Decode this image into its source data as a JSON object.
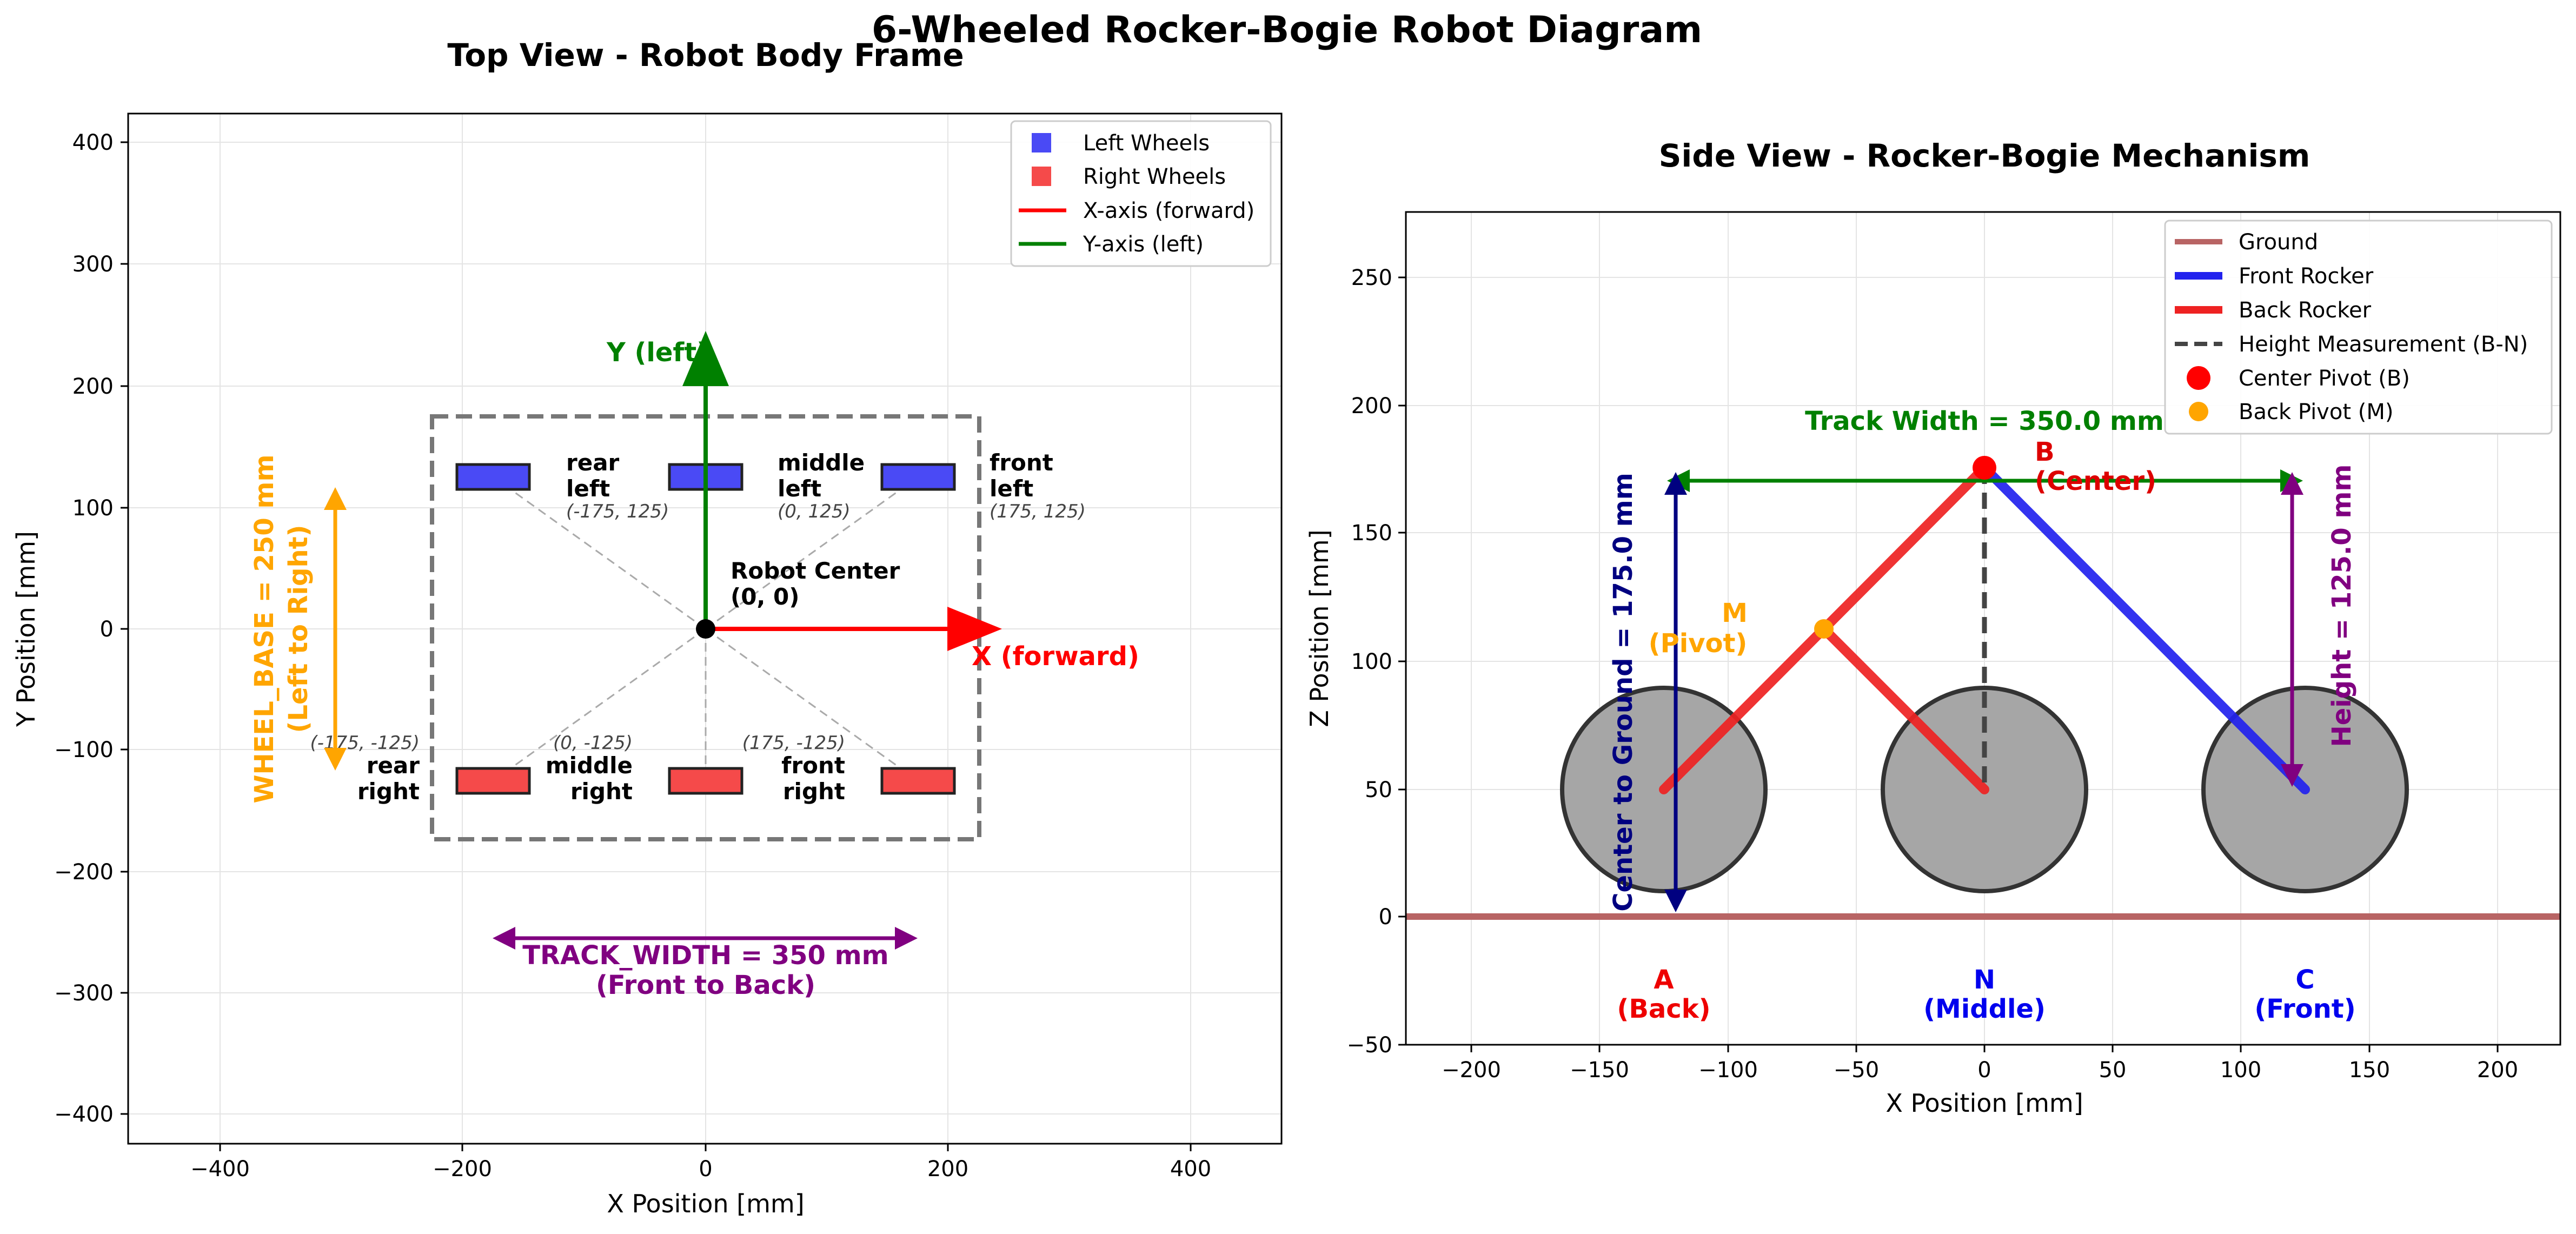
{
  "figure": {
    "title": "6-Wheeled Rocker-Bogie Robot Diagram"
  },
  "top_view": {
    "title": "Top View - Robot Body Frame",
    "xlabel": "X Position [mm]",
    "ylabel": "Y Position [mm]",
    "x_ticks": [
      "−400",
      "−200",
      "0",
      "200",
      "400"
    ],
    "y_ticks": [
      "400",
      "300",
      "200",
      "100",
      "0",
      "−100",
      "−200",
      "−300",
      "−400"
    ],
    "legend": [
      {
        "label": "Left Wheels",
        "color": "#4a4af5",
        "kind": "square"
      },
      {
        "label": "Right Wheels",
        "color": "#f54a4a",
        "kind": "square"
      },
      {
        "label": "X-axis (forward)",
        "color": "#ff0000",
        "kind": "line"
      },
      {
        "label": "Y-axis (left)",
        "color": "#008000",
        "kind": "line"
      }
    ],
    "y_axis_label": "Y (left)",
    "x_axis_label": "X (forward)",
    "center_label_1": "Robot Center",
    "center_label_2": "(0, 0)",
    "wheels": [
      {
        "line1": "rear",
        "line2": "left",
        "coord": "(-175, 125)",
        "x": -175,
        "y": 125,
        "side": "left"
      },
      {
        "line1": "middle",
        "line2": "left",
        "coord": "(0, 125)",
        "x": 0,
        "y": 125,
        "side": "left"
      },
      {
        "line1": "front",
        "line2": "left",
        "coord": "(175, 125)",
        "x": 175,
        "y": 125,
        "side": "left"
      },
      {
        "line1": "rear",
        "line2": "right",
        "coord": "(-175, -125)",
        "x": -175,
        "y": -125,
        "side": "right"
      },
      {
        "line1": "middle",
        "line2": "right",
        "coord": "(0, -125)",
        "x": 0,
        "y": -125,
        "side": "right"
      },
      {
        "line1": "front",
        "line2": "right",
        "coord": "(175, -125)",
        "x": 175,
        "y": -125,
        "side": "right"
      }
    ],
    "wheel_base_1": "WHEEL_BASE = 250 mm",
    "wheel_base_2": "(Left to Right)",
    "track_width_1": "TRACK_WIDTH = 350 mm",
    "track_width_2": "(Front to Back)"
  },
  "side_view": {
    "title": "Side View - Rocker-Bogie Mechanism",
    "xlabel": "X Position [mm]",
    "ylabel": "Z Position [mm]",
    "x_ticks": [
      "−200",
      "−150",
      "−100",
      "−50",
      "0",
      "50",
      "100",
      "150",
      "200"
    ],
    "y_ticks": [
      "250",
      "200",
      "150",
      "100",
      "50",
      "0",
      "−50"
    ],
    "legend": [
      {
        "label": "Ground",
        "color": "#b86464",
        "kind": "line"
      },
      {
        "label": "Front Rocker",
        "color": "#2222ee",
        "kind": "line"
      },
      {
        "label": "Back Rocker",
        "color": "#ee2222",
        "kind": "line"
      },
      {
        "label": "Height Measurement (B-N)",
        "color": "#444444",
        "kind": "dash"
      },
      {
        "label": "Center Pivot (B)",
        "color": "#ff0000",
        "kind": "dot"
      },
      {
        "label": "Back Pivot (M)",
        "color": "#ffa500",
        "kind": "dot"
      }
    ],
    "track_width": "Track Width = 350.0 mm",
    "center_to_ground": "Center to Ground = 175.0 mm",
    "height": "Height = 125.0 mm",
    "pivot_b_1": "B",
    "pivot_b_2": "(Center)",
    "pivot_m_1": "M",
    "pivot_m_2": "(Pivot)",
    "wheel_a_1": "A",
    "wheel_a_2": "(Back)",
    "wheel_n_1": "N",
    "wheel_n_2": "(Middle)",
    "wheel_c_1": "C",
    "wheel_c_2": "(Front)"
  }
}
